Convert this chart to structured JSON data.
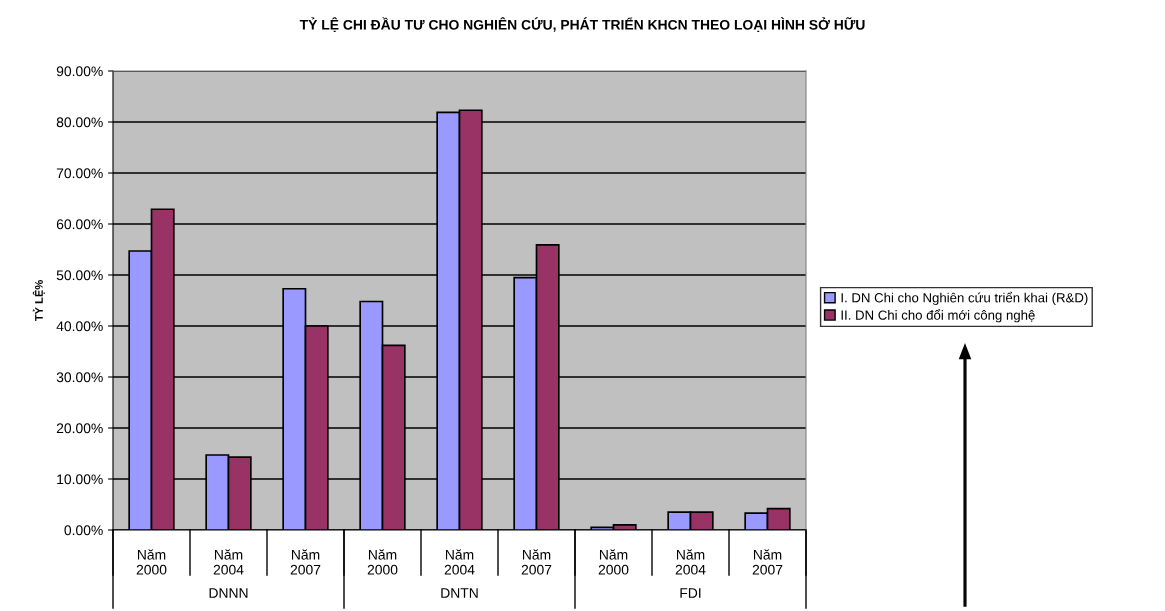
{
  "chart_data": {
    "type": "bar",
    "title": "TỶ LỆ CHI ĐẦU TƯ CHO NGHIÊN CỨU, PHÁT TRIỂN KHCN THEO LOẠI HÌNH SỞ HỮU",
    "ylabel": "TỶ LỆ%",
    "categories": [
      "Năm\n2000",
      "Năm\n2004",
      "Năm\n2007",
      "Năm\n2000",
      "Năm\n2004",
      "Năm\n2007",
      "Năm\n2000",
      "Năm\n2004",
      "Năm\n2007"
    ],
    "annotations": [
      "DNNN",
      "DNTN",
      "FDI"
    ],
    "series": [
      {
        "name": "I. DN Chi cho Nghiên cứu triển khai (R&D)",
        "color": "#9999ff",
        "values": [
          54.7,
          14.7,
          47.3,
          44.8,
          81.9,
          49.5,
          0.5,
          3.5,
          3.3
        ]
      },
      {
        "name": "II. DN Chi cho đổi mới công nghệ",
        "color": "#993366",
        "values": [
          62.9,
          14.3,
          40.0,
          36.2,
          82.3,
          55.9,
          1.0,
          3.5,
          4.2
        ]
      }
    ],
    "ylim": [
      0,
      90
    ],
    "yticks": [
      {
        "value": 0,
        "label": "0.00%"
      },
      {
        "value": 10,
        "label": "10.00%"
      },
      {
        "value": 20,
        "label": "20.00%"
      },
      {
        "value": 30,
        "label": "30.00%"
      },
      {
        "value": 40,
        "label": "40.00%"
      },
      {
        "value": 50,
        "label": "50.00%"
      },
      {
        "value": 60,
        "label": "60.00%"
      },
      {
        "value": 70,
        "label": "70.00%"
      },
      {
        "value": 80,
        "label": "80.00%"
      },
      {
        "value": 90,
        "label": "90.00%"
      }
    ],
    "grid": "y",
    "legend": "right"
  }
}
